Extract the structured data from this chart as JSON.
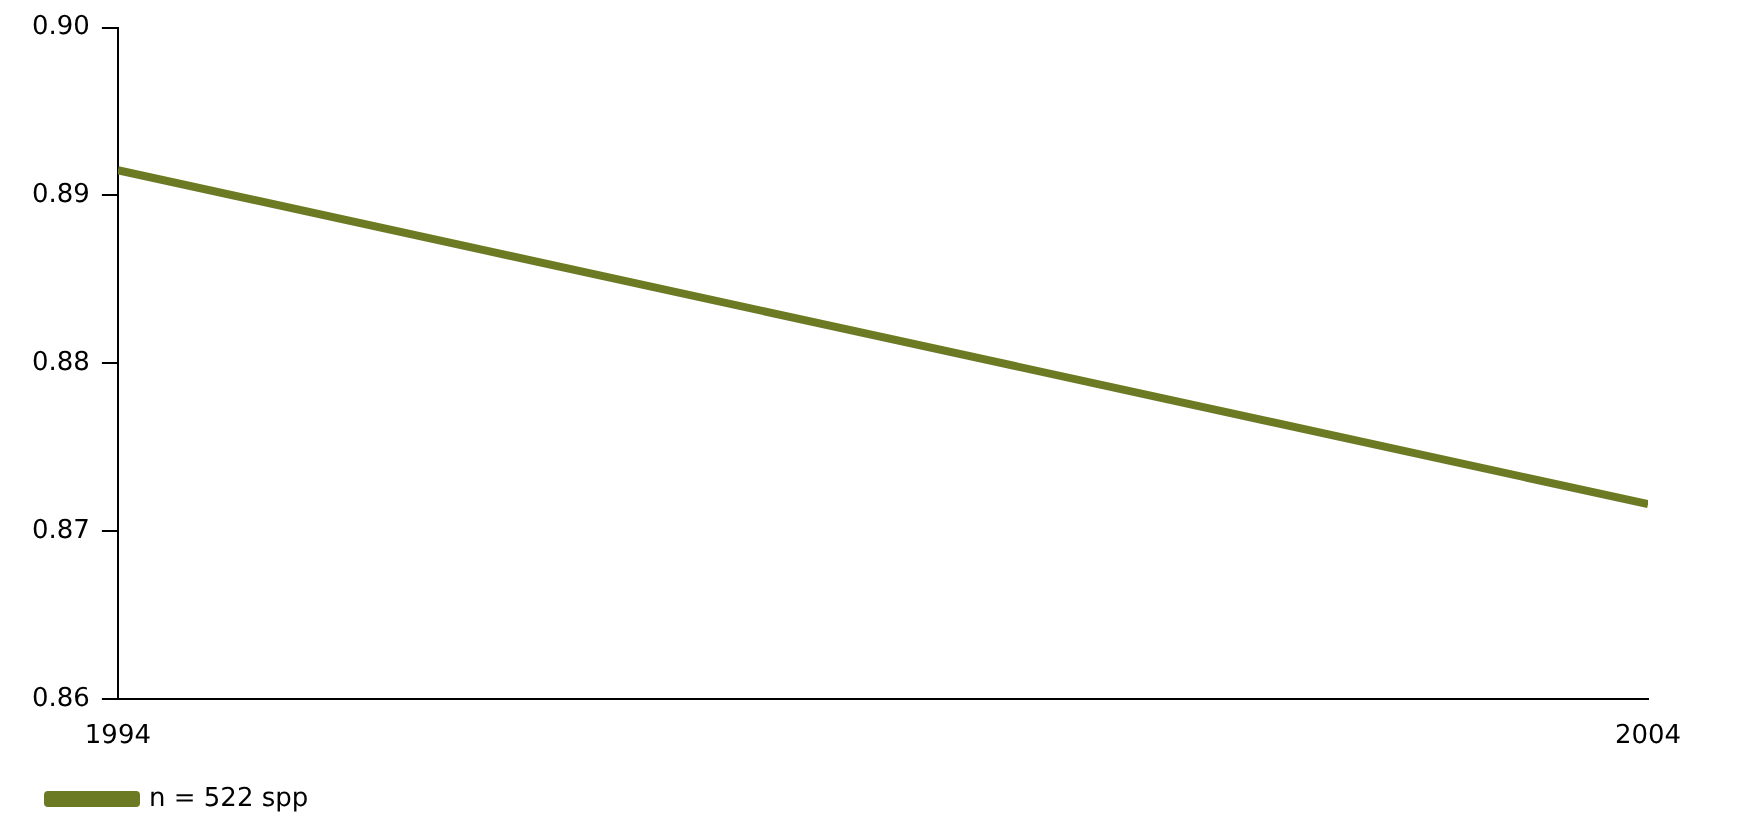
{
  "chart_data": {
    "type": "line",
    "x": [
      1994,
      2004
    ],
    "xlim": [
      1994,
      2004
    ],
    "xticks": [
      1994,
      2004
    ],
    "ylim": [
      0.86,
      0.9
    ],
    "yticks": [
      {
        "value": 0.86,
        "label": "0.86"
      },
      {
        "value": 0.87,
        "label": "0.87"
      },
      {
        "value": 0.88,
        "label": "0.88"
      },
      {
        "value": 0.89,
        "label": "0.89"
      },
      {
        "value": 0.9,
        "label": "0.90"
      }
    ],
    "grid": false,
    "legend": "bottom left",
    "marker": "none",
    "series": [
      {
        "name": "n = 522 spp",
        "color": "#6b7a23",
        "values": [
          0.8915,
          0.8716
        ]
      }
    ]
  }
}
